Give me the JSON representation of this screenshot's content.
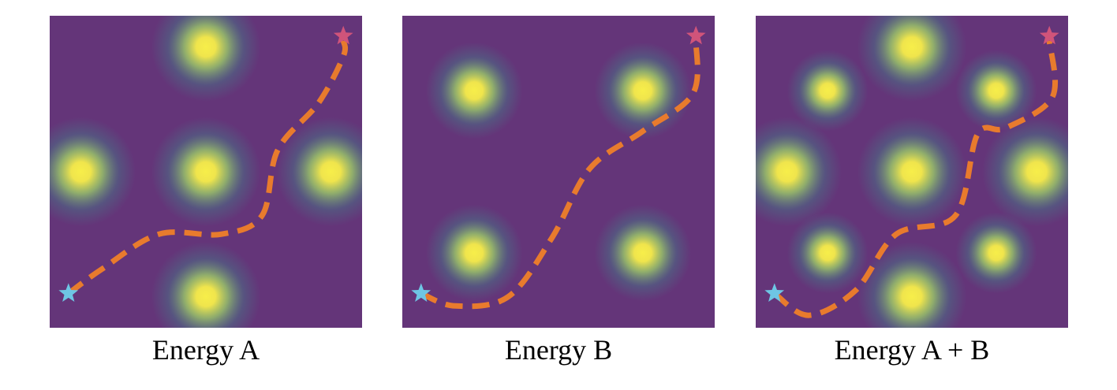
{
  "panels": [
    {
      "caption": "Energy A",
      "minima": [
        [
          0.5,
          0.1
        ],
        [
          0.1,
          0.5
        ],
        [
          0.5,
          0.5
        ],
        [
          0.9,
          0.5
        ],
        [
          0.5,
          0.9
        ]
      ],
      "path": [
        [
          0.06,
          0.89
        ],
        [
          0.17,
          0.81
        ],
        [
          0.35,
          0.7
        ],
        [
          0.55,
          0.7
        ],
        [
          0.68,
          0.64
        ],
        [
          0.73,
          0.43
        ],
        [
          0.86,
          0.28
        ],
        [
          0.94,
          0.13
        ],
        [
          0.94,
          0.08
        ]
      ]
    },
    {
      "caption": "Energy B",
      "minima": [
        [
          0.23,
          0.24
        ],
        [
          0.77,
          0.24
        ],
        [
          0.23,
          0.76
        ],
        [
          0.77,
          0.76
        ]
      ],
      "path": [
        [
          0.06,
          0.89
        ],
        [
          0.17,
          0.93
        ],
        [
          0.34,
          0.9
        ],
        [
          0.48,
          0.71
        ],
        [
          0.6,
          0.49
        ],
        [
          0.77,
          0.37
        ],
        [
          0.93,
          0.25
        ],
        [
          0.94,
          0.08
        ]
      ]
    },
    {
      "caption": "Energy A + B",
      "minima": [
        [
          0.5,
          0.1
        ],
        [
          0.23,
          0.24
        ],
        [
          0.77,
          0.24
        ],
        [
          0.1,
          0.5
        ],
        [
          0.5,
          0.5
        ],
        [
          0.9,
          0.5
        ],
        [
          0.23,
          0.76
        ],
        [
          0.77,
          0.76
        ],
        [
          0.5,
          0.9
        ]
      ],
      "path": [
        [
          0.06,
          0.89
        ],
        [
          0.17,
          0.96
        ],
        [
          0.32,
          0.88
        ],
        [
          0.45,
          0.7
        ],
        [
          0.64,
          0.64
        ],
        [
          0.71,
          0.38
        ],
        [
          0.8,
          0.36
        ],
        [
          0.95,
          0.26
        ],
        [
          0.94,
          0.08
        ]
      ]
    }
  ],
  "colors": {
    "background": "#643579",
    "minimum_core": "#f7ee4a",
    "minimum_mid": "#9ed468",
    "minimum_edge": "#3f8a8c",
    "path": "#e87b2d",
    "start_star": "#6ec6e4",
    "end_star": "#d0547a"
  },
  "icons": {
    "start": "star-icon",
    "end": "star-icon"
  }
}
